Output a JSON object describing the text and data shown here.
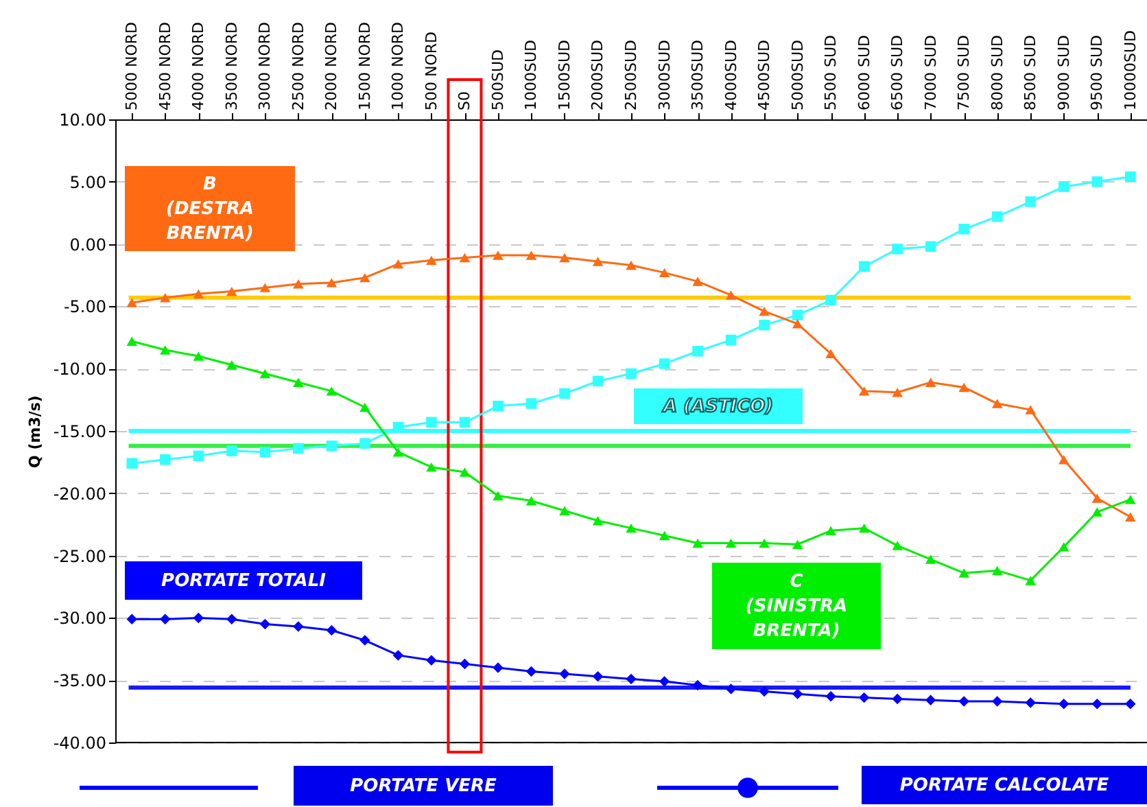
{
  "chart_data": {
    "type": "line",
    "ylabel": "Q (m3/s)",
    "categories": [
      "5000 NORD",
      "4500 NORD",
      "4000 NORD",
      "3500 NORD",
      "3000 NORD",
      "2500 NORD",
      "2000 NORD",
      "1500 NORD",
      "1000 NORD",
      "500 NORD",
      "S0",
      "500SUD",
      "1000SUD",
      "1500SUD",
      "2000SUD",
      "2500SUD",
      "3000SUD",
      "3500SUD",
      "4000SUD",
      "4500SUD",
      "5000SUD",
      "5500 SUD",
      "6000 SUD",
      "6500 SUD",
      "7000 SUD",
      "7500 SUD",
      "8000 SUD",
      "8500 SUD",
      "9000 SUD",
      "9500 SUD",
      "10000SUD"
    ],
    "series": [
      {
        "name": "A (ASTICO)",
        "color": "#33ffff",
        "marker": "square",
        "values": [
          -17.6,
          -17.3,
          -17.0,
          -16.6,
          -16.7,
          -16.4,
          -16.2,
          -16.0,
          -14.7,
          -14.3,
          -14.3,
          -13.0,
          -12.8,
          -12.0,
          -11.0,
          -10.4,
          -9.6,
          -8.6,
          -7.7,
          -6.5,
          -5.7,
          -4.5,
          -1.8,
          -0.4,
          -0.2,
          1.2,
          2.2,
          3.4,
          4.6,
          5.0,
          5.4
        ]
      },
      {
        "name": "B\n(DESTRA\nBRENTA)",
        "color": "#ff6a13",
        "marker": "triangle",
        "values": [
          -4.7,
          -4.3,
          -4.0,
          -3.8,
          -3.5,
          -3.2,
          -3.1,
          -2.7,
          -1.6,
          -1.3,
          -1.1,
          -0.9,
          -0.9,
          -1.1,
          -1.4,
          -1.7,
          -2.3,
          -3.0,
          -4.1,
          -5.4,
          -6.4,
          -8.8,
          -11.8,
          -11.9,
          -11.1,
          -11.5,
          -12.8,
          -13.3,
          -17.3,
          -20.4,
          -21.9
        ]
      },
      {
        "name": "C\n(SINISTRA\nBRENTA)",
        "color": "#00ee00",
        "marker": "triangle",
        "values": [
          -7.8,
          -8.5,
          -9.0,
          -9.7,
          -10.4,
          -11.1,
          -11.8,
          -13.1,
          -16.7,
          -17.9,
          -18.3,
          -20.2,
          -20.6,
          -21.4,
          -22.2,
          -22.8,
          -23.4,
          -24.0,
          -24.0,
          -24.0,
          -24.1,
          -23.0,
          -22.8,
          -24.2,
          -25.3,
          -26.4,
          -26.2,
          -27.0,
          -24.3,
          -21.5,
          -20.5
        ]
      },
      {
        "name": "PORTATE TOTALI",
        "color": "#0000ff",
        "marker": "diamond",
        "values": [
          -30.1,
          -30.1,
          -30.0,
          -30.1,
          -30.5,
          -30.7,
          -31.0,
          -31.8,
          -33.0,
          -33.4,
          -33.7,
          -34.0,
          -34.3,
          -34.5,
          -34.7,
          -34.9,
          -35.1,
          -35.4,
          -35.7,
          -35.9,
          -36.1,
          -36.3,
          -36.4,
          -36.5,
          -36.6,
          -36.7,
          -36.7,
          -36.8,
          -36.9,
          -36.9,
          -36.9
        ]
      }
    ],
    "ref_lines": [
      {
        "axis": "y",
        "value": -4.3,
        "color": "#ffcc00"
      },
      {
        "axis": "y",
        "value": -15.0,
        "color": "#33ffff"
      },
      {
        "axis": "y",
        "value": -16.2,
        "color": "#33ee44"
      },
      {
        "axis": "y",
        "value": -35.6,
        "color": "#1a1aff"
      }
    ],
    "ylim": [
      -40,
      10
    ],
    "yticks": [
      {
        "value": -40,
        "label": "-40.00"
      },
      {
        "value": -35,
        "label": "-35.00"
      },
      {
        "value": -30,
        "label": "-30.00"
      },
      {
        "value": -25,
        "label": "-25.00"
      },
      {
        "value": -20,
        "label": "-20.00"
      },
      {
        "value": -15,
        "label": "-15.00"
      },
      {
        "value": -10,
        "label": "-10.00"
      },
      {
        "value": -5,
        "label": "-5.00"
      },
      {
        "value": 0,
        "label": "0.00"
      },
      {
        "value": 5,
        "label": "5.00"
      },
      {
        "value": 10,
        "label": "10.00"
      }
    ],
    "grid": "y",
    "line_style": "solid",
    "annotations": [
      "PORTATE VERE",
      "PORTATE CALCOLATE"
    ]
  }
}
